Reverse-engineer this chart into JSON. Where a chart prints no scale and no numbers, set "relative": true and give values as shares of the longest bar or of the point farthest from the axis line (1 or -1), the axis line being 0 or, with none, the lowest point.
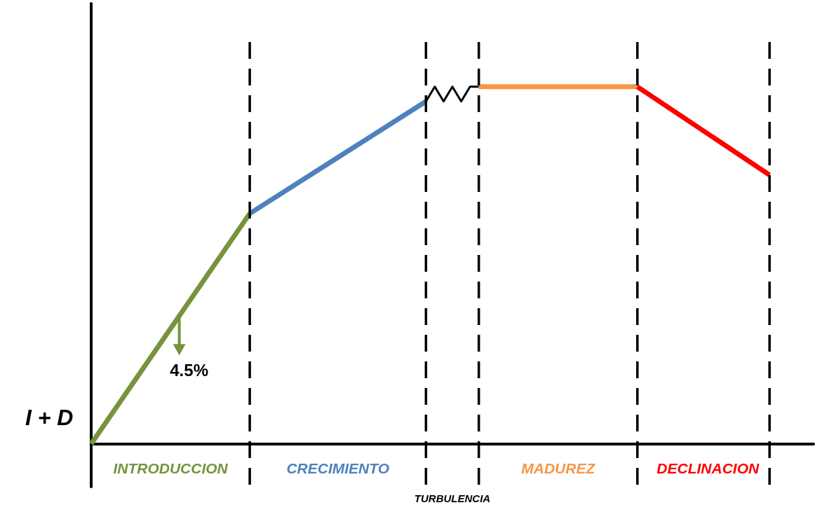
{
  "chart_data": {
    "type": "line",
    "relative": true,
    "ylabel": "I + D",
    "tick_labels": false,
    "legend": false,
    "marker": "none",
    "line_style": "solid",
    "categories": [
      null,
      null,
      null,
      null,
      null,
      null,
      null,
      null,
      null,
      null,
      null,
      null,
      null,
      null,
      null,
      null,
      null,
      null,
      null,
      null,
      null,
      null,
      null,
      null,
      null,
      null,
      null,
      null,
      null,
      null,
      null,
      null,
      null,
      null,
      null,
      null,
      null,
      null,
      null,
      null,
      null,
      null,
      null,
      null,
      null,
      null,
      null,
      null,
      null,
      null,
      null,
      null,
      null,
      null,
      null,
      null,
      null,
      null,
      null,
      null,
      null,
      null,
      null,
      null,
      null,
      null,
      null,
      null,
      null,
      null,
      null,
      null,
      null,
      null,
      null,
      null,
      null,
      null,
      null,
      null,
      null,
      null,
      null
    ],
    "series": [
      {
        "name": "INTRODUCCION",
        "color": "#77933c",
        "values": [
          0,
          null,
          null,
          null,
          null,
          null,
          null,
          null,
          null,
          null,
          null,
          null,
          null,
          null,
          null,
          null,
          null,
          null,
          0.645,
          null,
          null,
          null,
          null,
          null,
          null,
          null,
          null,
          null,
          null,
          null,
          null,
          null,
          null,
          null,
          null,
          null,
          null,
          null,
          null,
          null,
          null,
          null,
          null,
          null,
          null,
          null,
          null,
          null,
          null,
          null,
          null,
          null,
          null,
          null,
          null,
          null,
          null,
          null,
          null,
          null,
          null,
          null,
          null,
          null,
          null,
          null,
          null,
          null,
          null,
          null,
          null,
          null,
          null,
          null,
          null,
          null,
          null,
          null,
          null,
          null,
          null,
          null,
          null
        ]
      },
      {
        "name": "CRECIMIENTO",
        "color": "#4f81bd",
        "values": [
          null,
          null,
          null,
          null,
          null,
          null,
          null,
          null,
          null,
          null,
          null,
          null,
          null,
          null,
          null,
          null,
          null,
          null,
          0.645,
          null,
          null,
          null,
          null,
          null,
          null,
          null,
          null,
          null,
          null,
          null,
          null,
          null,
          null,
          null,
          null,
          null,
          null,
          null,
          0.959,
          null,
          null,
          null,
          null,
          null,
          null,
          null,
          null,
          null,
          null,
          null,
          null,
          null,
          null,
          null,
          null,
          null,
          null,
          null,
          null,
          null,
          null,
          null,
          null,
          null,
          null,
          null,
          null,
          null,
          null,
          null,
          null,
          null,
          null,
          null,
          null,
          null,
          null,
          null,
          null,
          null,
          null,
          null,
          null
        ]
      },
      {
        "name": "TURBULENCIA",
        "color": "#000000",
        "values": [
          null,
          null,
          null,
          null,
          null,
          null,
          null,
          null,
          null,
          null,
          null,
          null,
          null,
          null,
          null,
          null,
          null,
          null,
          null,
          null,
          null,
          null,
          null,
          null,
          null,
          null,
          null,
          null,
          null,
          null,
          null,
          null,
          null,
          null,
          null,
          null,
          null,
          null,
          0.959,
          1,
          0.959,
          1,
          0.959,
          1,
          1,
          null,
          null,
          null,
          null,
          null,
          null,
          null,
          null,
          null,
          null,
          null,
          null,
          null,
          null,
          null,
          null,
          null,
          null,
          null,
          null,
          null,
          null,
          null,
          null,
          null,
          null,
          null,
          null,
          null,
          null,
          null,
          null,
          null,
          null,
          null,
          null,
          null,
          null
        ]
      },
      {
        "name": "MADUREZ",
        "color": "#f79646",
        "values": [
          null,
          null,
          null,
          null,
          null,
          null,
          null,
          null,
          null,
          null,
          null,
          null,
          null,
          null,
          null,
          null,
          null,
          null,
          null,
          null,
          null,
          null,
          null,
          null,
          null,
          null,
          null,
          null,
          null,
          null,
          null,
          null,
          null,
          null,
          null,
          null,
          null,
          null,
          null,
          null,
          null,
          null,
          null,
          null,
          1,
          null,
          null,
          null,
          null,
          null,
          null,
          null,
          null,
          null,
          null,
          null,
          null,
          null,
          null,
          null,
          null,
          null,
          1,
          null,
          null,
          null,
          null,
          null,
          null,
          null,
          null,
          null,
          null,
          null,
          null,
          null,
          null,
          null,
          null,
          null,
          null,
          null,
          null
        ]
      },
      {
        "name": "DECLINACION",
        "color": "#ff0000",
        "values": [
          null,
          null,
          null,
          null,
          null,
          null,
          null,
          null,
          null,
          null,
          null,
          null,
          null,
          null,
          null,
          null,
          null,
          null,
          null,
          null,
          null,
          null,
          null,
          null,
          null,
          null,
          null,
          null,
          null,
          null,
          null,
          null,
          null,
          null,
          null,
          null,
          null,
          null,
          null,
          null,
          null,
          null,
          null,
          null,
          null,
          null,
          null,
          null,
          null,
          null,
          null,
          null,
          null,
          null,
          null,
          null,
          null,
          null,
          null,
          null,
          null,
          null,
          1,
          null,
          null,
          null,
          null,
          null,
          null,
          null,
          null,
          null,
          null,
          null,
          null,
          null,
          null,
          0.753,
          null,
          null,
          null,
          null,
          null
        ]
      }
    ],
    "annotations": [
      "4.5%"
    ]
  }
}
